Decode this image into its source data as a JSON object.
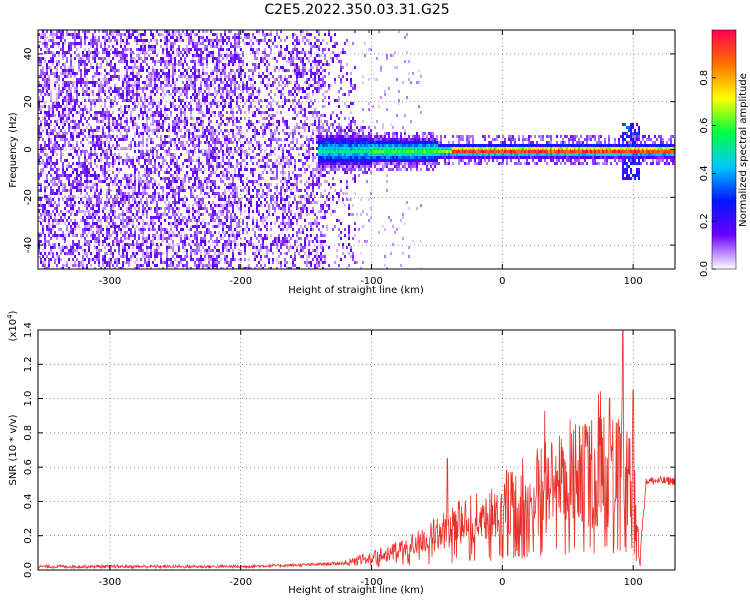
{
  "title": "C2E5.2022.350.03.31.G25",
  "colors": {
    "snr_line": "#e8302a",
    "axis": "#000000",
    "grid": "#000000",
    "colorbar": [
      "#ffffff",
      "#6a00ff",
      "#0018ff",
      "#00c8ff",
      "#00ff40",
      "#ffff00",
      "#ff7000",
      "#ff0050"
    ]
  },
  "chart_data": [
    {
      "type": "heatmap",
      "title": "",
      "xlabel": "Height of straight line (km)",
      "ylabel": "Frequency (Hz)",
      "xlim": [
        -355,
        132
      ],
      "ylim": [
        -50,
        50
      ],
      "xticks": [
        -300,
        -200,
        -100,
        0,
        100
      ],
      "xtick_labels": [
        "-300",
        "-200",
        "-100",
        "0",
        "100"
      ],
      "yticks": [
        -40,
        -20,
        0,
        20,
        40
      ],
      "ytick_labels": [
        "-40",
        "-20",
        "0",
        "20",
        "40"
      ],
      "grid": true,
      "colorbar": {
        "label": "Normalized spectral amplitude",
        "range": [
          0.0,
          1.0
        ],
        "ticks": [
          0.0,
          0.2,
          0.4,
          0.6,
          0.8
        ],
        "tick_labels": [
          "0.0",
          "0.2",
          "0.4",
          "0.6",
          "0.8"
        ]
      },
      "features": [
        {
          "region": "x from -355 to -120 km",
          "description_value": "broadband noise across full frequency band, amplitude ~0.05-0.15"
        },
        {
          "region": "x from -140 to 132 km",
          "center_frequency_hz": 0,
          "amplitude_range": [
            0.2,
            1.0
          ]
        }
      ]
    },
    {
      "type": "line",
      "title": "",
      "xlabel": "Height of straight line (km)",
      "ylabel": "SNR (10 * v/v)",
      "y_multiplier": "(x10^4)",
      "xlim": [
        -355,
        132
      ],
      "ylim": [
        0,
        1.4
      ],
      "xticks": [
        -300,
        -200,
        -100,
        0,
        100
      ],
      "xtick_labels": [
        "-300",
        "-200",
        "-100",
        "0",
        "100"
      ],
      "yticks": [
        0.0,
        0.2,
        0.4,
        0.6,
        0.8,
        1.0,
        1.2,
        1.4
      ],
      "ytick_labels": [
        "0.0",
        "0.2",
        "0.4",
        "0.6",
        "0.8",
        "1.0",
        "1.2",
        "1.4"
      ],
      "grid": true,
      "series": [
        {
          "x": [
            -355,
            -300,
            -250,
            -200,
            -150,
            -120,
            -110,
            -100,
            -90,
            -80,
            -70,
            -60,
            -50,
            -40,
            -30,
            -20,
            -10,
            0,
            10,
            20,
            30,
            40,
            50,
            60,
            70,
            80,
            90,
            95,
            100,
            105,
            110,
            120,
            132
          ],
          "y": [
            0.02,
            0.02,
            0.02,
            0.02,
            0.03,
            0.04,
            0.06,
            0.08,
            0.1,
            0.12,
            0.15,
            0.18,
            0.22,
            0.26,
            0.3,
            0.32,
            0.34,
            0.38,
            0.42,
            0.46,
            0.5,
            0.54,
            0.56,
            0.58,
            0.6,
            0.62,
            0.6,
            0.55,
            0.5,
            0.08,
            0.52,
            0.52,
            0.52
          ],
          "peaks": [
            {
              "x": -42,
              "y": 0.65
            },
            {
              "x": 56,
              "y": 0.85
            },
            {
              "x": 82,
              "y": 1.0
            },
            {
              "x": 92,
              "y": 1.4
            },
            {
              "x": 100,
              "y": 1.05
            }
          ]
        }
      ]
    }
  ]
}
